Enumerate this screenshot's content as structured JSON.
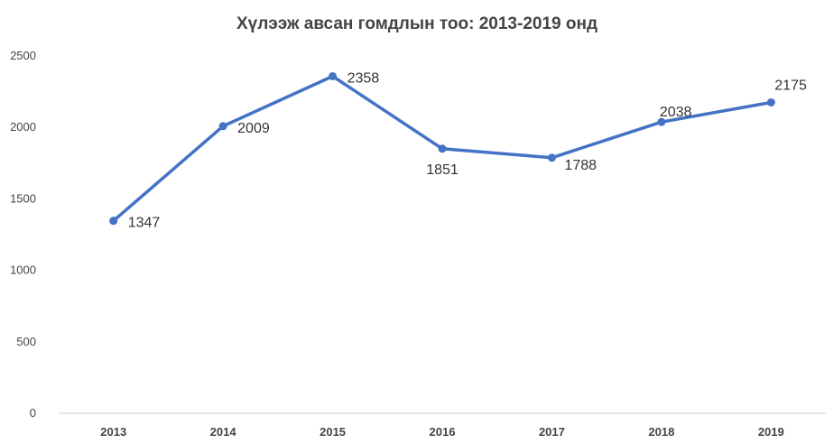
{
  "chart_data": {
    "type": "line",
    "title": "Хүлээж авсан гомдлын тоо:  2013-2019 онд",
    "xlabel": "",
    "ylabel": "",
    "categories": [
      "2013",
      "2014",
      "2015",
      "2016",
      "2017",
      "2018",
      "2019"
    ],
    "series": [
      {
        "values": [
          1347,
          2009,
          2358,
          1851,
          1788,
          2038,
          2175
        ]
      }
    ],
    "data_labels": [
      "1347",
      "2009",
      "2358",
      "1851",
      "1788",
      "2038",
      "2175"
    ],
    "y_ticks": [
      "0",
      "500",
      "1000",
      "1500",
      "2000",
      "2500"
    ],
    "ylim": [
      0,
      2500
    ],
    "grid": false,
    "legend": "none",
    "colors": {
      "line": "#4472C4",
      "axis": "#d0d0d0",
      "text": "#444444"
    }
  }
}
